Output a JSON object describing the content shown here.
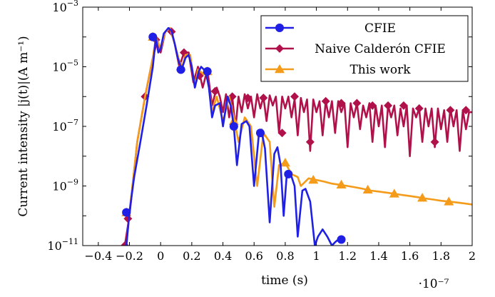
{
  "chart_data": {
    "type": "line",
    "title": "",
    "xlabel": "time (s)",
    "x_scale_note": "·10⁻⁷",
    "ylabel": "Current intensity |j(t)|(A m⁻¹)",
    "xlim": [
      -0.5,
      2.0
    ],
    "ylim": [
      1e-11,
      0.001
    ],
    "y_scale": "log",
    "x_ticks": [
      {
        "v": -0.4,
        "label": "−0.4"
      },
      {
        "v": -0.2,
        "label": "−0.2"
      },
      {
        "v": 0,
        "label": "0"
      },
      {
        "v": 0.2,
        "label": "0.2"
      },
      {
        "v": 0.4,
        "label": "0.4"
      },
      {
        "v": 0.6,
        "label": "0.6"
      },
      {
        "v": 0.8,
        "label": "0.8"
      },
      {
        "v": 1.0,
        "label": "1"
      },
      {
        "v": 1.2,
        "label": "1.2"
      },
      {
        "v": 1.4,
        "label": "1.4"
      },
      {
        "v": 1.6,
        "label": "1.6"
      },
      {
        "v": 1.8,
        "label": "1.8"
      },
      {
        "v": 2.0,
        "label": "2"
      }
    ],
    "y_ticks": [
      {
        "v": 1e-11,
        "base": "10",
        "exp": "−11"
      },
      {
        "v": 1e-09,
        "base": "10",
        "exp": "−9"
      },
      {
        "v": 1e-07,
        "base": "10",
        "exp": "−7"
      },
      {
        "v": 1e-05,
        "base": "10",
        "exp": "−5"
      },
      {
        "v": 0.001,
        "base": "10",
        "exp": "−3"
      }
    ],
    "legend_position": "top-right",
    "series": [
      {
        "name": "CFIE",
        "color": "#1f1fe6",
        "marker": "circle",
        "x": [
          -0.22,
          -0.2,
          -0.17,
          -0.13,
          -0.09,
          -0.05,
          -0.03,
          -0.015,
          0.0,
          0.02,
          0.05,
          0.07,
          0.09,
          0.11,
          0.135,
          0.16,
          0.18,
          0.2,
          0.22,
          0.245,
          0.26,
          0.29,
          0.31,
          0.33,
          0.35,
          0.38,
          0.4,
          0.43,
          0.45,
          0.47,
          0.49,
          0.52,
          0.55,
          0.57,
          0.6,
          0.63,
          0.65,
          0.67,
          0.7,
          0.73,
          0.75,
          0.77,
          0.79,
          0.81,
          0.83,
          0.86,
          0.88,
          0.91,
          0.93,
          0.96,
          0.99,
          1.01,
          1.04,
          1.07,
          1.1,
          1.12,
          1.14,
          1.15,
          1.17
        ],
        "y": [
          1e-11,
          1.3e-10,
          2e-09,
          3e-08,
          5e-07,
          1e-05,
          0.0001,
          3e-05,
          4e-05,
          0.00013,
          0.0002,
          0.00016,
          6e-05,
          2e-05,
          8e-06,
          2e-05,
          2.5e-05,
          1e-05,
          2e-06,
          7e-06,
          1e-05,
          7e-06,
          2e-06,
          2e-07,
          5e-07,
          6e-07,
          1e-07,
          1e-06,
          5e-07,
          1e-07,
          5e-09,
          1.2e-07,
          1.5e-07,
          1e-07,
          1e-09,
          5e-08,
          6e-08,
          1.8e-08,
          6e-11,
          1.2e-08,
          2e-08,
          5e-09,
          1e-10,
          2.5e-09,
          3e-09,
          1e-09,
          2e-11,
          7e-10,
          8e-10,
          3e-10,
          1e-11,
          2e-11,
          3.5e-11,
          2e-11,
          1e-11,
          1.3e-11,
          1.6e-11,
          1.7e-11,
          1.6e-11
        ]
      },
      {
        "name": "Naive Calderón CFIE",
        "color": "#b0114a",
        "marker": "diamond",
        "x": [
          -0.23,
          -0.2,
          -0.15,
          -0.1,
          -0.05,
          -0.02,
          0.0,
          0.03,
          0.06,
          0.09,
          0.12,
          0.15,
          0.18,
          0.21,
          0.24,
          0.27,
          0.3,
          0.33,
          0.36,
          0.38,
          0.4,
          0.42,
          0.44,
          0.46,
          0.48,
          0.5,
          0.52,
          0.54,
          0.56,
          0.58,
          0.6,
          0.62,
          0.64,
          0.66,
          0.68,
          0.7,
          0.72,
          0.74,
          0.76,
          0.78,
          0.8,
          0.82,
          0.84,
          0.86,
          0.88,
          0.9,
          0.92,
          0.94,
          0.96,
          0.98,
          1.0,
          1.02,
          1.04,
          1.06,
          1.08,
          1.1,
          1.12,
          1.14,
          1.16,
          1.18,
          1.2,
          1.22,
          1.24,
          1.26,
          1.28,
          1.3,
          1.32,
          1.34,
          1.36,
          1.38,
          1.4,
          1.42,
          1.44,
          1.46,
          1.48,
          1.5,
          1.52,
          1.54,
          1.56,
          1.58,
          1.6,
          1.62,
          1.64,
          1.66,
          1.68,
          1.7,
          1.72,
          1.74,
          1.76,
          1.78,
          1.8,
          1.82,
          1.84,
          1.86,
          1.88,
          1.9,
          1.92,
          1.94,
          1.96,
          1.98,
          2.0
        ],
        "y": [
          1e-11,
          1e-10,
          3e-08,
          1e-06,
          2e-05,
          8e-05,
          3e-05,
          0.00015,
          0.0002,
          6e-05,
          1e-05,
          3e-05,
          3e-05,
          3e-06,
          1e-05,
          2e-06,
          8e-06,
          5e-07,
          2e-06,
          1e-06,
          3e-07,
          1.2e-06,
          2e-07,
          1e-06,
          8e-08,
          1e-06,
          3e-07,
          1.2e-06,
          4e-07,
          1e-06,
          2e-07,
          1.2e-06,
          4e-07,
          1e-06,
          1.5e-07,
          1.1e-06,
          5e-07,
          1e-06,
          6e-08,
          1e-06,
          4e-07,
          1e-06,
          2e-07,
          8e-07,
          5e-08,
          9e-07,
          3e-07,
          8e-07,
          1.5e-08,
          8e-07,
          3e-07,
          7e-07,
          5e-08,
          7e-07,
          2e-07,
          7e-07,
          6e-08,
          7e-07,
          3e-07,
          6e-07,
          2e-08,
          6e-07,
          2e-07,
          6e-07,
          8e-08,
          5e-07,
          2e-07,
          6e-07,
          3e-08,
          5e-07,
          1e-07,
          5e-07,
          2e-08,
          5e-07,
          2e-07,
          5e-07,
          5e-08,
          4e-07,
          1e-07,
          5e-07,
          1e-08,
          4e-07,
          2e-07,
          4e-07,
          3e-08,
          4e-07,
          1e-07,
          4e-07,
          2e-08,
          4e-07,
          8e-08,
          3.5e-07,
          3e-08,
          4e-07,
          1e-07,
          3.5e-07,
          1.5e-08,
          3.5e-07,
          8e-08,
          3e-07,
          3e-07
        ]
      },
      {
        "name": "This work",
        "color": "#f59b1a",
        "marker": "triangle",
        "x": [
          -0.22,
          -0.2,
          -0.15,
          -0.1,
          -0.05,
          -0.03,
          0.0,
          0.03,
          0.06,
          0.09,
          0.12,
          0.14,
          0.16,
          0.19,
          0.22,
          0.24,
          0.27,
          0.29,
          0.31,
          0.33,
          0.36,
          0.4,
          0.44,
          0.47,
          0.5,
          0.54,
          0.58,
          0.62,
          0.66,
          0.7,
          0.73,
          0.76,
          0.8,
          0.84,
          0.88,
          0.9,
          0.95,
          1.0,
          1.05,
          1.1,
          1.15,
          1.2,
          1.25,
          1.3,
          1.35,
          1.4,
          1.45,
          1.5,
          1.55,
          1.6,
          1.65,
          1.7,
          1.75,
          1.8,
          1.85,
          1.9,
          1.95,
          2.0
        ],
        "y": [
          1e-11,
          1.3e-10,
          3e-08,
          1e-06,
          2e-05,
          0.0001,
          4e-05,
          0.00015,
          0.0002,
          6e-05,
          1.5e-05,
          1e-05,
          2.5e-05,
          2.5e-05,
          2e-06,
          8e-06,
          6e-06,
          7e-06,
          2e-06,
          3e-07,
          1e-06,
          1.5e-07,
          1e-06,
          2e-07,
          3e-08,
          2e-07,
          1e-07,
          1e-09,
          6e-08,
          3e-08,
          2e-10,
          5e-09,
          6e-09,
          2.5e-09,
          2e-09,
          1e-09,
          1.8e-09,
          1.6e-09,
          1.4e-09,
          1.2e-09,
          1.1e-09,
          1e-09,
          9e-10,
          8e-10,
          7e-10,
          6.5e-10,
          6e-10,
          5.5e-10,
          5e-10,
          4.6e-10,
          4.2e-10,
          3.8e-10,
          3.5e-10,
          3.2e-10,
          3e-10,
          2.8e-10,
          2.6e-10,
          2.4e-10
        ]
      }
    ],
    "markers": {
      "CFIE": [
        [
          -0.22,
          1.3e-10
        ],
        [
          -0.05,
          0.0001
        ],
        [
          0.13,
          8e-06
        ],
        [
          0.3,
          7e-06
        ],
        [
          0.47,
          1e-07
        ],
        [
          0.64,
          6e-08
        ],
        [
          0.82,
          2.5e-09
        ],
        [
          1.16,
          1.6e-11
        ]
      ],
      "Naive Calderón CFIE": [
        [
          -0.23,
          1e-11
        ],
        [
          -0.21,
          8e-11
        ],
        [
          -0.1,
          1e-06
        ],
        [
          -0.03,
          8e-05
        ],
        [
          0.07,
          0.00015
        ],
        [
          0.15,
          3e-05
        ],
        [
          0.25,
          5e-06
        ],
        [
          0.35,
          1.5e-06
        ],
        [
          0.46,
          1e-06
        ],
        [
          0.56,
          9e-07
        ],
        [
          0.66,
          9e-07
        ],
        [
          0.78,
          6e-08
        ],
        [
          0.86,
          1e-06
        ],
        [
          0.96,
          3e-08
        ],
        [
          1.06,
          7e-07
        ],
        [
          1.16,
          6e-07
        ],
        [
          1.26,
          6e-07
        ],
        [
          1.36,
          5e-07
        ],
        [
          1.46,
          5e-07
        ],
        [
          1.56,
          5e-07
        ],
        [
          1.66,
          4e-07
        ],
        [
          1.76,
          3e-08
        ],
        [
          1.86,
          3.5e-07
        ],
        [
          1.96,
          3.5e-07
        ]
      ],
      "This work": [
        [
          -0.22,
          1.3e-10
        ],
        [
          -0.05,
          0.0001
        ],
        [
          0.13,
          1e-05
        ],
        [
          0.3,
          7e-06
        ],
        [
          0.47,
          1.5e-07
        ],
        [
          0.65,
          6e-08
        ],
        [
          0.8,
          6e-09
        ],
        [
          0.98,
          1.6e-09
        ],
        [
          1.16,
          1.1e-09
        ],
        [
          1.33,
          7.5e-10
        ],
        [
          1.5,
          5.5e-10
        ],
        [
          1.68,
          4e-10
        ],
        [
          1.85,
          3e-10
        ]
      ]
    }
  },
  "legend": {
    "items": [
      {
        "label": "CFIE",
        "color": "#1f1fe6",
        "marker": "circle"
      },
      {
        "label": "Naive Calderón CFIE",
        "color": "#b0114a",
        "marker": "diamond"
      },
      {
        "label": "This work",
        "color": "#f59b1a",
        "marker": "triangle"
      }
    ]
  }
}
